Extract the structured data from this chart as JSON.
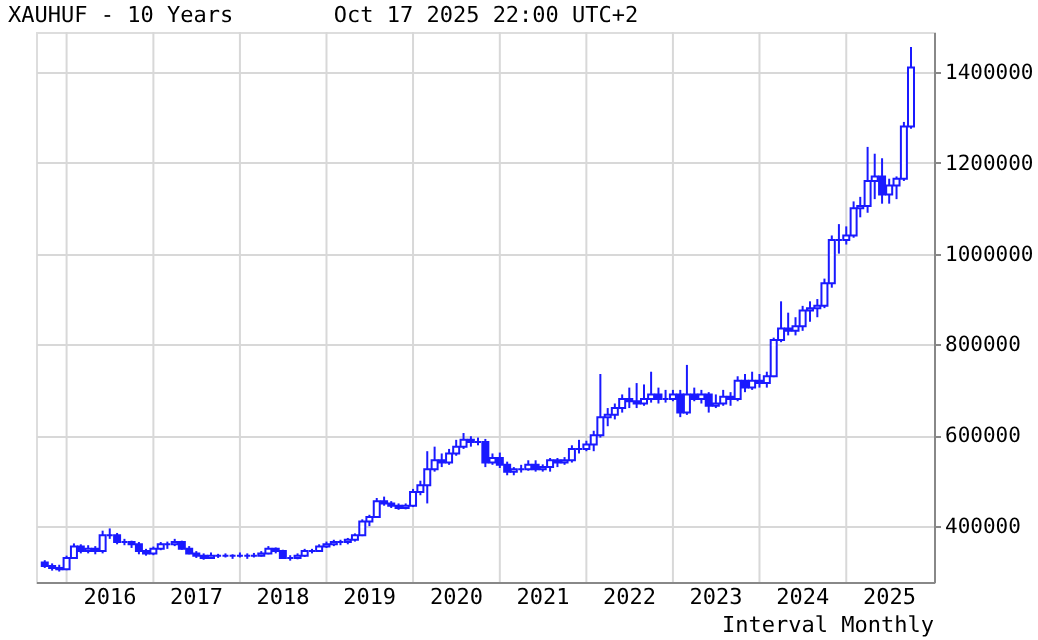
{
  "chart_data": {
    "type": "candlestick",
    "title": "XAUHUF - 10 Years",
    "subtitle": "Oct 17 2025 22:00 UTC+2",
    "annotations": [
      "Interval Monthly"
    ],
    "color": "#1a1aff",
    "x": [
      "2015-10",
      "2015-11",
      "2015-12",
      "2016-01",
      "2016-02",
      "2016-03",
      "2016-04",
      "2016-05",
      "2016-06",
      "2016-07",
      "2016-08",
      "2016-09",
      "2016-10",
      "2016-11",
      "2016-12",
      "2017-01",
      "2017-02",
      "2017-03",
      "2017-04",
      "2017-05",
      "2017-06",
      "2017-07",
      "2017-08",
      "2017-09",
      "2017-10",
      "2017-11",
      "2017-12",
      "2018-01",
      "2018-02",
      "2018-03",
      "2018-04",
      "2018-05",
      "2018-06",
      "2018-07",
      "2018-08",
      "2018-09",
      "2018-10",
      "2018-11",
      "2018-12",
      "2019-01",
      "2019-02",
      "2019-03",
      "2019-04",
      "2019-05",
      "2019-06",
      "2019-07",
      "2019-08",
      "2019-09",
      "2019-10",
      "2019-11",
      "2019-12",
      "2020-01",
      "2020-02",
      "2020-03",
      "2020-04",
      "2020-05",
      "2020-06",
      "2020-07",
      "2020-08",
      "2020-09",
      "2020-10",
      "2020-11",
      "2020-12",
      "2021-01",
      "2021-02",
      "2021-03",
      "2021-04",
      "2021-05",
      "2021-06",
      "2021-07",
      "2021-08",
      "2021-09",
      "2021-10",
      "2021-11",
      "2021-12",
      "2022-01",
      "2022-02",
      "2022-03",
      "2022-04",
      "2022-05",
      "2022-06",
      "2022-07",
      "2022-08",
      "2022-09",
      "2022-10",
      "2022-11",
      "2022-12",
      "2023-01",
      "2023-02",
      "2023-03",
      "2023-04",
      "2023-05",
      "2023-06",
      "2023-07",
      "2023-08",
      "2023-09",
      "2023-10",
      "2023-11",
      "2023-12",
      "2024-01",
      "2024-02",
      "2024-03",
      "2024-04",
      "2024-05",
      "2024-06",
      "2024-07",
      "2024-08",
      "2024-09",
      "2024-10",
      "2024-11",
      "2024-12",
      "2025-01",
      "2025-02",
      "2025-03",
      "2025-04",
      "2025-05",
      "2025-06",
      "2025-07",
      "2025-08",
      "2025-09",
      "2025-10"
    ],
    "ohlc": [
      [
        320000,
        325000,
        308000,
        312000
      ],
      [
        312000,
        318000,
        302000,
        308000
      ],
      [
        308000,
        315000,
        300000,
        305000
      ],
      [
        305000,
        335000,
        303000,
        330000
      ],
      [
        330000,
        362000,
        328000,
        355000
      ],
      [
        355000,
        360000,
        340000,
        345000
      ],
      [
        345000,
        358000,
        340000,
        350000
      ],
      [
        350000,
        356000,
        338000,
        345000
      ],
      [
        345000,
        390000,
        340000,
        380000
      ],
      [
        380000,
        395000,
        372000,
        380000
      ],
      [
        380000,
        385000,
        360000,
        365000
      ],
      [
        365000,
        372000,
        358000,
        365000
      ],
      [
        365000,
        368000,
        352000,
        360000
      ],
      [
        360000,
        365000,
        338000,
        345000
      ],
      [
        345000,
        350000,
        335000,
        340000
      ],
      [
        340000,
        355000,
        336000,
        350000
      ],
      [
        350000,
        365000,
        347000,
        360000
      ],
      [
        360000,
        366000,
        350000,
        360000
      ],
      [
        360000,
        372000,
        356000,
        365000
      ],
      [
        365000,
        368000,
        348000,
        350000
      ],
      [
        350000,
        356000,
        338000,
        340000
      ],
      [
        340000,
        345000,
        330000,
        335000
      ],
      [
        335000,
        340000,
        326000,
        330000
      ],
      [
        330000,
        342000,
        328000,
        335000
      ],
      [
        335000,
        339000,
        330000,
        335000
      ],
      [
        335000,
        340000,
        331000,
        335000
      ],
      [
        335000,
        338000,
        328000,
        335000
      ],
      [
        335000,
        342000,
        331000,
        335000
      ],
      [
        335000,
        340000,
        328000,
        335000
      ],
      [
        335000,
        341000,
        331000,
        335000
      ],
      [
        335000,
        345000,
        333000,
        340000
      ],
      [
        340000,
        356000,
        338000,
        350000
      ],
      [
        350000,
        353000,
        340000,
        345000
      ],
      [
        345000,
        348000,
        328000,
        330000
      ],
      [
        330000,
        336000,
        324000,
        330000
      ],
      [
        330000,
        340000,
        327000,
        335000
      ],
      [
        335000,
        350000,
        332000,
        345000
      ],
      [
        345000,
        350000,
        340000,
        345000
      ],
      [
        345000,
        360000,
        343000,
        355000
      ],
      [
        355000,
        366000,
        352000,
        360000
      ],
      [
        360000,
        370000,
        356000,
        365000
      ],
      [
        365000,
        370000,
        358000,
        365000
      ],
      [
        365000,
        374000,
        360000,
        370000
      ],
      [
        370000,
        384000,
        366000,
        380000
      ],
      [
        380000,
        415000,
        378000,
        410000
      ],
      [
        410000,
        425000,
        400000,
        420000
      ],
      [
        420000,
        462000,
        418000,
        455000
      ],
      [
        455000,
        465000,
        445000,
        450000
      ],
      [
        450000,
        455000,
        440000,
        445000
      ],
      [
        445000,
        450000,
        436000,
        440000
      ],
      [
        440000,
        450000,
        437000,
        445000
      ],
      [
        445000,
        482000,
        442000,
        475000
      ],
      [
        475000,
        500000,
        468000,
        490000
      ],
      [
        490000,
        565000,
        450000,
        525000
      ],
      [
        525000,
        575000,
        520000,
        545000
      ],
      [
        545000,
        560000,
        530000,
        540000
      ],
      [
        540000,
        570000,
        535000,
        560000
      ],
      [
        560000,
        590000,
        555000,
        575000
      ],
      [
        575000,
        605000,
        570000,
        590000
      ],
      [
        590000,
        598000,
        575000,
        585000
      ],
      [
        585000,
        595000,
        578000,
        585000
      ],
      [
        585000,
        592000,
        530000,
        540000
      ],
      [
        540000,
        560000,
        535000,
        550000
      ],
      [
        550000,
        562000,
        528000,
        535000
      ],
      [
        535000,
        542000,
        512000,
        520000
      ],
      [
        520000,
        530000,
        512000,
        525000
      ],
      [
        525000,
        535000,
        518000,
        525000
      ],
      [
        525000,
        545000,
        522000,
        535000
      ],
      [
        535000,
        545000,
        520000,
        525000
      ],
      [
        525000,
        536000,
        520000,
        530000
      ],
      [
        530000,
        550000,
        520000,
        545000
      ],
      [
        545000,
        550000,
        530000,
        540000
      ],
      [
        540000,
        552000,
        535000,
        545000
      ],
      [
        545000,
        578000,
        540000,
        570000
      ],
      [
        570000,
        590000,
        560000,
        570000
      ],
      [
        570000,
        588000,
        565000,
        580000
      ],
      [
        580000,
        610000,
        565000,
        600000
      ],
      [
        600000,
        735000,
        595000,
        640000
      ],
      [
        640000,
        660000,
        620000,
        645000
      ],
      [
        645000,
        670000,
        635000,
        660000
      ],
      [
        660000,
        690000,
        650000,
        680000
      ],
      [
        680000,
        705000,
        660000,
        675000
      ],
      [
        675000,
        715000,
        660000,
        670000
      ],
      [
        670000,
        712000,
        665000,
        680000
      ],
      [
        680000,
        740000,
        672000,
        690000
      ],
      [
        690000,
        705000,
        670000,
        680000
      ],
      [
        680000,
        700000,
        672000,
        680000
      ],
      [
        680000,
        700000,
        675000,
        690000
      ],
      [
        690000,
        700000,
        640000,
        650000
      ],
      [
        650000,
        755000,
        645000,
        690000
      ],
      [
        690000,
        705000,
        675000,
        680000
      ],
      [
        680000,
        700000,
        670000,
        690000
      ],
      [
        690000,
        695000,
        650000,
        665000
      ],
      [
        665000,
        690000,
        660000,
        670000
      ],
      [
        670000,
        700000,
        665000,
        685000
      ],
      [
        685000,
        695000,
        665000,
        680000
      ],
      [
        680000,
        730000,
        675000,
        720000
      ],
      [
        720000,
        735000,
        695000,
        705000
      ],
      [
        705000,
        740000,
        700000,
        720000
      ],
      [
        720000,
        735000,
        705000,
        715000
      ],
      [
        715000,
        740000,
        705000,
        730000
      ],
      [
        730000,
        815000,
        728000,
        810000
      ],
      [
        810000,
        895000,
        805000,
        835000
      ],
      [
        835000,
        870000,
        820000,
        830000
      ],
      [
        830000,
        860000,
        820000,
        840000
      ],
      [
        840000,
        885000,
        830000,
        875000
      ],
      [
        875000,
        895000,
        850000,
        880000
      ],
      [
        880000,
        900000,
        860000,
        885000
      ],
      [
        885000,
        945000,
        880000,
        935000
      ],
      [
        935000,
        1040000,
        925000,
        1030000
      ],
      [
        1030000,
        1065000,
        1000000,
        1030000
      ],
      [
        1030000,
        1060000,
        1020000,
        1040000
      ],
      [
        1040000,
        1115000,
        1035000,
        1100000
      ],
      [
        1100000,
        1125000,
        1080000,
        1105000
      ],
      [
        1105000,
        1235000,
        1090000,
        1160000
      ],
      [
        1160000,
        1220000,
        1120000,
        1170000
      ],
      [
        1170000,
        1210000,
        1110000,
        1130000
      ],
      [
        1130000,
        1165000,
        1110000,
        1150000
      ],
      [
        1150000,
        1170000,
        1120000,
        1165000
      ],
      [
        1165000,
        1290000,
        1160000,
        1280000
      ],
      [
        1280000,
        1455000,
        1275000,
        1410000
      ]
    ],
    "xlim": [
      "2015-08-25",
      "2026-01-06"
    ],
    "xticks": [
      {
        "value": "2016-01-01",
        "label": null
      },
      {
        "value": "2016-07-02",
        "label": "2016"
      },
      {
        "value": "2017-01-01",
        "label": null
      },
      {
        "value": "2017-07-02",
        "label": "2017"
      },
      {
        "value": "2018-01-01",
        "label": null
      },
      {
        "value": "2018-07-02",
        "label": "2018"
      },
      {
        "value": "2019-01-01",
        "label": null
      },
      {
        "value": "2019-07-02",
        "label": "2019"
      },
      {
        "value": "2020-01-01",
        "label": null
      },
      {
        "value": "2020-07-02",
        "label": "2020"
      },
      {
        "value": "2021-01-01",
        "label": null
      },
      {
        "value": "2021-07-02",
        "label": "2021"
      },
      {
        "value": "2022-01-01",
        "label": null
      },
      {
        "value": "2022-07-02",
        "label": "2022"
      },
      {
        "value": "2023-01-01",
        "label": null
      },
      {
        "value": "2023-07-02",
        "label": "2023"
      },
      {
        "value": "2024-01-01",
        "label": null
      },
      {
        "value": "2024-07-02",
        "label": "2024"
      },
      {
        "value": "2025-01-01",
        "label": null
      },
      {
        "value": "2025-07-02",
        "label": "2025"
      }
    ],
    "ylim": [
      277000,
      1488000
    ],
    "yticks": [
      400000,
      600000,
      800000,
      1000000,
      1200000,
      1400000
    ],
    "grid": true
  }
}
